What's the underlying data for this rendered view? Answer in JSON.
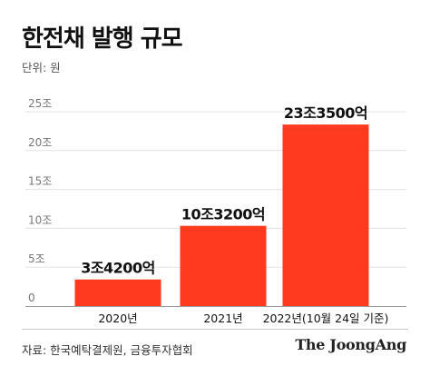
{
  "title": "한전채 발행 규모",
  "unit_label": "단위: 원",
  "source": "자료: 한국예탁결제원, 금융투자협회",
  "brand": "The JoongAng",
  "colors": {
    "bar": "#ff3a1f",
    "grid": "#e3e3e3",
    "axis": "#9a9a9a",
    "tick_text": "#777777",
    "label_text": "#111111"
  },
  "chart_data": {
    "type": "bar",
    "title": "한전채 발행 규모",
    "ylabel": "단위: 원",
    "categories": [
      "2020년",
      "2021년",
      "2022년(10월 24일 기준)"
    ],
    "values": [
      3.42,
      10.32,
      23.35
    ],
    "value_labels": [
      "3조4200억",
      "10조3200억",
      "23조3500억"
    ],
    "yticks": [
      0,
      5,
      10,
      15,
      20,
      25
    ],
    "ytick_labels": [
      "0",
      "5조",
      "10조",
      "15조",
      "20조",
      "25조"
    ],
    "ylim": [
      0,
      25
    ],
    "grid": true,
    "legend": "none"
  }
}
